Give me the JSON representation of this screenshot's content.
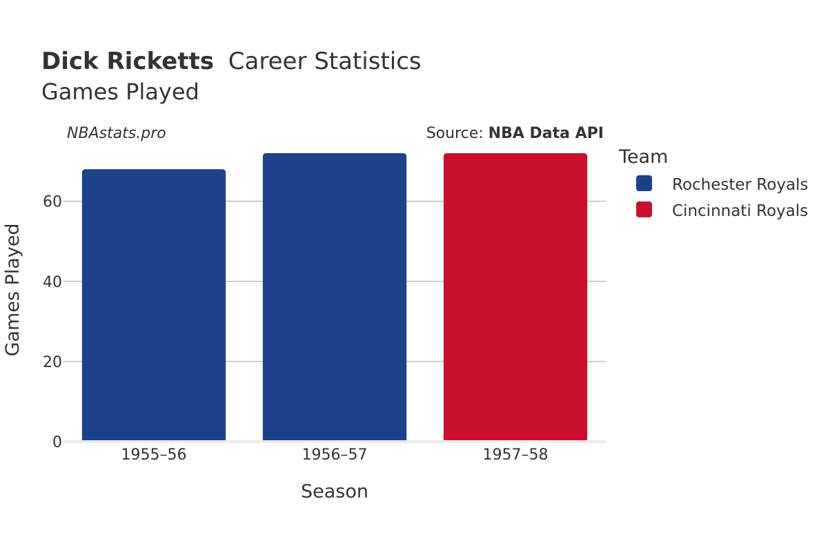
{
  "header": {
    "player_name": "Dick Ricketts",
    "title_rest": "Career Statistics",
    "subtitle": "Games Played"
  },
  "watermark": "NBAstats.pro",
  "source": {
    "prefix": "Source: ",
    "name": "NBA Data API"
  },
  "legend": {
    "title": "Team",
    "items": [
      {
        "label": "Rochester Royals",
        "color": "#1d428a"
      },
      {
        "label": "Cincinnati Royals",
        "color": "#c8102e"
      }
    ]
  },
  "chart_data": {
    "type": "bar",
    "xlabel": "Season",
    "ylabel": "Games Played",
    "categories": [
      "1955–56",
      "1956–57",
      "1957–58"
    ],
    "values": [
      68,
      72,
      72
    ],
    "teams": [
      "Rochester Royals",
      "Rochester Royals",
      "Cincinnati Royals"
    ],
    "ylim": [
      0,
      72
    ],
    "yticks": [
      0,
      20,
      40,
      60
    ],
    "grid": true,
    "legend_position": "right"
  }
}
